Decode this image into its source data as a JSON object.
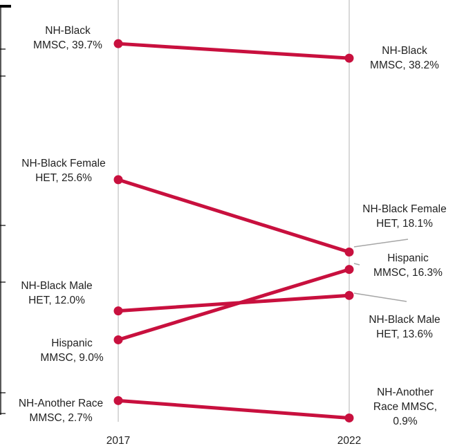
{
  "chart_data": {
    "type": "line",
    "subtype": "slope",
    "title": "",
    "xlabel": "",
    "ylabel": "",
    "x": [
      "2017",
      "2022"
    ],
    "series": [
      {
        "key": "nhb_mmsc",
        "label_2017": [
          "NH-Black",
          "MMSC, 39.7%"
        ],
        "label_2022": [
          "NH-Black",
          "MMSC, 38.2%"
        ],
        "values": [
          39.7,
          38.2
        ]
      },
      {
        "key": "nhb_female_het",
        "label_2017": [
          "NH-Black Female",
          "HET, 25.6%"
        ],
        "label_2022": [
          "NH-Black Female",
          "HET, 18.1%"
        ],
        "values": [
          25.6,
          18.1
        ]
      },
      {
        "key": "hisp_mmsc",
        "label_2017": [
          "Hispanic",
          "MMSC, 9.0%"
        ],
        "label_2022": [
          "Hispanic",
          "MMSC, 16.3%"
        ],
        "values": [
          9.0,
          16.3
        ]
      },
      {
        "key": "nhb_male_het",
        "label_2017": [
          "NH-Black Male",
          "HET, 12.0%"
        ],
        "label_2022": [
          "NH-Black Male",
          "HET, 13.6%"
        ],
        "values": [
          12.0,
          13.6
        ]
      },
      {
        "key": "nha_mmsc",
        "label_2017": [
          "NH-Another Race",
          "MMSC, 2.7%"
        ],
        "label_2022": [
          "NH-Another",
          "Race MMSC,",
          "0.9%"
        ],
        "values": [
          2.7,
          0.9
        ]
      }
    ],
    "ylim": [
      0,
      43
    ],
    "grid": false,
    "legend": "none"
  },
  "colors": {
    "line": "#c8103e",
    "vertical_guide": "#d9d9d9",
    "leader": "#a6a6a6",
    "axis": "#000000",
    "text": "#222222"
  }
}
